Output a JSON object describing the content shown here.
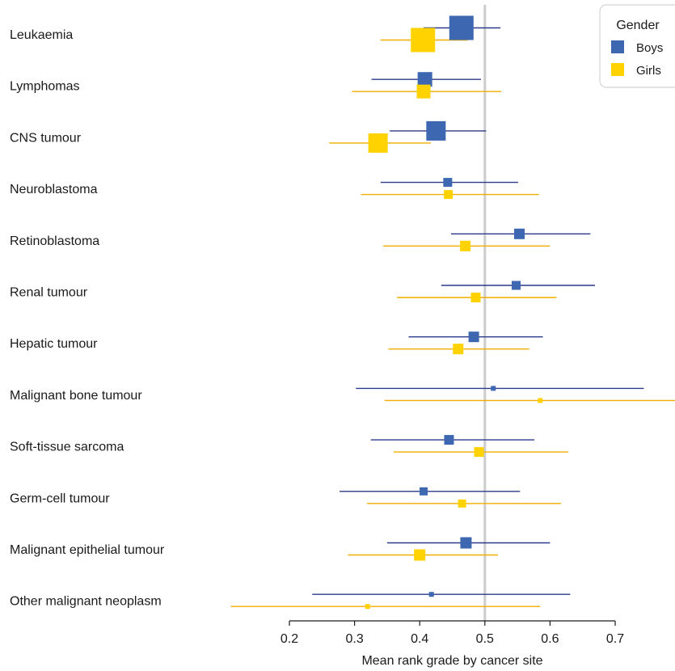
{
  "chart_data": {
    "type": "forest",
    "xlabel": "Mean rank grade by cancer site",
    "xticks": [
      0.2,
      0.3,
      0.4,
      0.5,
      0.6,
      0.7
    ],
    "xlim": [
      0.2,
      0.7
    ],
    "reference_line": 0.5,
    "legend": {
      "title": "Gender",
      "position": "top-right"
    },
    "categories": [
      "Leukaemia",
      "Lymphomas",
      "CNS tumour",
      "Neuroblastoma",
      "Retinoblastoma",
      "Renal tumour",
      "Hepatic tumour",
      "Malignant bone tumour",
      "Soft-tissue sarcoma",
      "Germ-cell tumour",
      "Malignant epithelial tumour",
      "Other malignant neoplasm"
    ],
    "series": [
      {
        "name": "Boys",
        "color": "#3d67b0",
        "points": [
          {
            "est": 0.464,
            "lo": 0.406,
            "hi": 0.524,
            "weight": 30
          },
          {
            "est": 0.408,
            "lo": 0.326,
            "hi": 0.494,
            "weight": 18
          },
          {
            "est": 0.425,
            "lo": 0.354,
            "hi": 0.502,
            "weight": 24
          },
          {
            "est": 0.443,
            "lo": 0.34,
            "hi": 0.551,
            "weight": 11
          },
          {
            "est": 0.553,
            "lo": 0.448,
            "hi": 0.662,
            "weight": 13
          },
          {
            "est": 0.548,
            "lo": 0.433,
            "hi": 0.669,
            "weight": 11
          },
          {
            "est": 0.483,
            "lo": 0.383,
            "hi": 0.589,
            "weight": 13
          },
          {
            "est": 0.513,
            "lo": 0.302,
            "hi": 0.744,
            "weight": 6
          },
          {
            "est": 0.445,
            "lo": 0.325,
            "hi": 0.576,
            "weight": 12
          },
          {
            "est": 0.406,
            "lo": 0.277,
            "hi": 0.554,
            "weight": 10
          },
          {
            "est": 0.471,
            "lo": 0.35,
            "hi": 0.6,
            "weight": 14
          },
          {
            "est": 0.418,
            "lo": 0.235,
            "hi": 0.631,
            "weight": 6
          }
        ]
      },
      {
        "name": "Girls",
        "color": "#ffd200",
        "points": [
          {
            "est": 0.405,
            "lo": 0.34,
            "hi": 0.474,
            "weight": 30
          },
          {
            "est": 0.406,
            "lo": 0.296,
            "hi": 0.525,
            "weight": 17
          },
          {
            "est": 0.336,
            "lo": 0.261,
            "hi": 0.417,
            "weight": 24
          },
          {
            "est": 0.444,
            "lo": 0.31,
            "hi": 0.583,
            "weight": 11
          },
          {
            "est": 0.47,
            "lo": 0.344,
            "hi": 0.6,
            "weight": 13
          },
          {
            "est": 0.486,
            "lo": 0.365,
            "hi": 0.61,
            "weight": 12
          },
          {
            "est": 0.459,
            "lo": 0.352,
            "hi": 0.568,
            "weight": 13
          },
          {
            "est": 0.585,
            "lo": 0.346,
            "hi": 0.8,
            "weight": 6
          },
          {
            "est": 0.491,
            "lo": 0.36,
            "hi": 0.628,
            "weight": 12
          },
          {
            "est": 0.465,
            "lo": 0.319,
            "hi": 0.617,
            "weight": 10
          },
          {
            "est": 0.4,
            "lo": 0.29,
            "hi": 0.52,
            "weight": 14
          },
          {
            "est": 0.32,
            "lo": 0.11,
            "hi": 0.585,
            "weight": 6
          }
        ]
      }
    ]
  }
}
